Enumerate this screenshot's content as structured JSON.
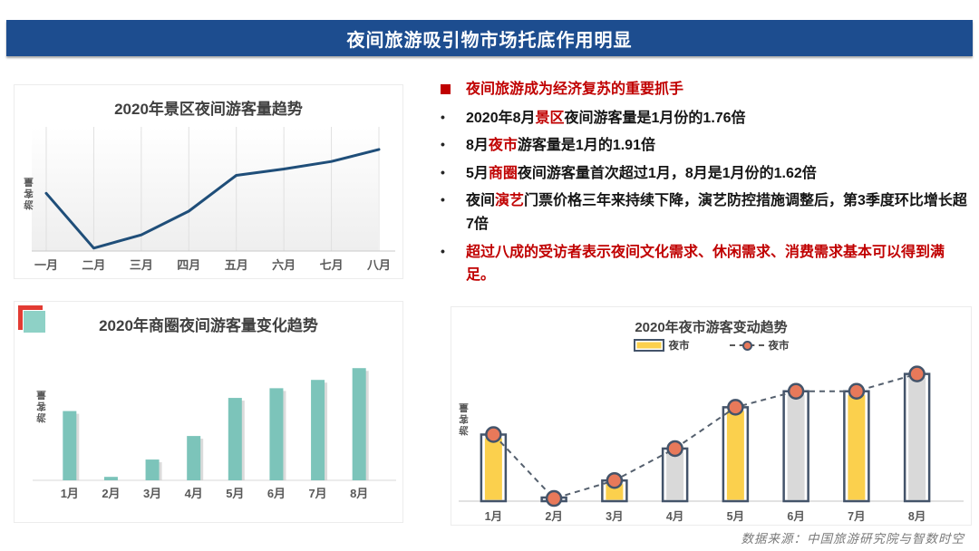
{
  "banner": {
    "title": "夜间旅游吸引物市场托底作用明显"
  },
  "colors": {
    "banner_bg": "#1d4d8f",
    "accent_red": "#c00000",
    "deco_red": "#e23b33",
    "deco_teal": "#8ed1c6"
  },
  "bullets": {
    "header": "夜间旅游成为经济复苏的重要抓手",
    "items": [
      {
        "before": "2020年8月",
        "keyword": "景区",
        "after": "夜间游客量是1月份的1.76倍"
      },
      {
        "before": "8月",
        "keyword": "夜市",
        "after": "游客量是1月的1.91倍"
      },
      {
        "before": "5月",
        "keyword": "商圈",
        "after": "夜间游客量首次超过1月，8月是1月份的1.62倍"
      },
      {
        "before": "夜间",
        "keyword": "演艺",
        "after": "门票价格三年来持续下降，演艺防控措施调整后，第3季度环比增长超7倍"
      },
      {
        "text": "超过八成的受访者表示夜间文化需求、休闲需求、消费需求基本可以得到满足。"
      }
    ]
  },
  "footer": {
    "source": "数据来源：中国旅游研究院与智数时空"
  },
  "chart_data": [
    {
      "type": "line",
      "title": "2020年景区夜间游客量趋势",
      "ylabel": "游客量",
      "categories": [
        "一月",
        "二月",
        "三月",
        "四月",
        "五月",
        "六月",
        "七月",
        "八月"
      ],
      "values": [
        1.0,
        0.05,
        0.28,
        0.69,
        1.31,
        1.42,
        1.55,
        1.76
      ],
      "ylim": [
        0,
        2.15
      ],
      "grid": "vertical",
      "legend_position": "none",
      "line_color": "#1f4e79"
    },
    {
      "type": "bar",
      "title": "2020年商圈夜间游客量变化趋势",
      "ylabel": "游客量",
      "categories": [
        "1月",
        "2月",
        "3月",
        "4月",
        "5月",
        "6月",
        "7月",
        "8月"
      ],
      "values": [
        1.0,
        0.05,
        0.3,
        0.64,
        1.19,
        1.33,
        1.45,
        1.62
      ],
      "ylim": [
        0,
        1.95
      ],
      "grid": "off",
      "legend_position": "none",
      "bar_color": "#7cc4ba"
    },
    {
      "type": "combo",
      "title": "2020年夜市游客变动趋势",
      "ylabel": "游客量",
      "categories": [
        "1月",
        "2月",
        "3月",
        "4月",
        "5月",
        "6月",
        "7月",
        "8月"
      ],
      "legend": [
        "夜市",
        "夜市"
      ],
      "legend_position": "top",
      "ylim": [
        0,
        2.15
      ],
      "grid": "off",
      "series": [
        {
          "name": "夜市",
          "kind": "bar",
          "values": [
            1.0,
            0.04,
            0.31,
            0.79,
            1.41,
            1.65,
            1.65,
            1.91
          ],
          "bar_fills": [
            "#fbd04d",
            "#ffffff",
            "#fbd04d",
            "#d9d9d9",
            "#fbd04d",
            "#d9d9d9",
            "#fbd04d",
            "#d9d9d9"
          ],
          "outline_color": "#44546a"
        },
        {
          "name": "夜市",
          "kind": "line",
          "values": [
            1.0,
            0.04,
            0.31,
            0.79,
            1.41,
            1.65,
            1.65,
            1.91
          ],
          "line_color": "#55606e",
          "dashed": true,
          "marker_fill": "#e8795a",
          "marker_outline": "#44546a"
        }
      ]
    }
  ]
}
